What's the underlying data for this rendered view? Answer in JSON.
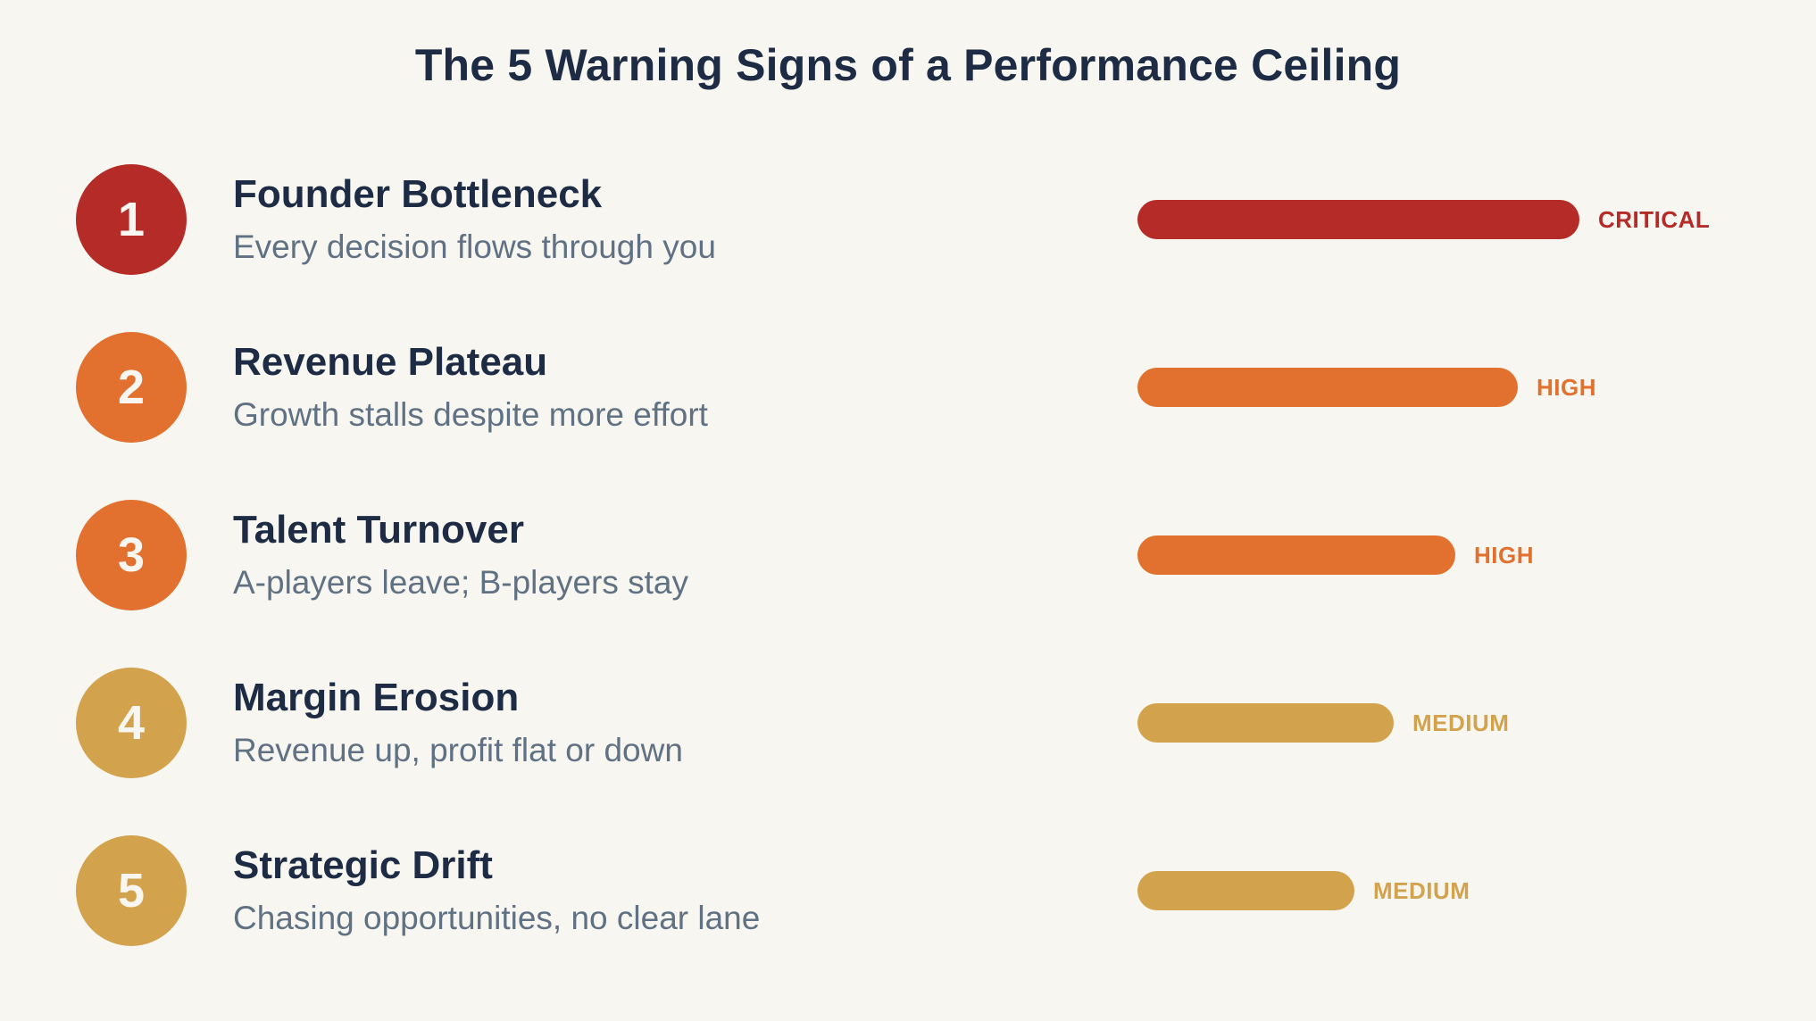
{
  "page": {
    "title": "The 5 Warning Signs of a Performance Ceiling",
    "background_color": "#F7F6F0",
    "title_color": "#1D2B44",
    "description_color": "#5F7183"
  },
  "severity_colors": {
    "CRITICAL": "#B42B27",
    "HIGH": "#E2712F",
    "MEDIUM": "#D3A24C"
  },
  "signs": [
    {
      "number": "1",
      "title": "Founder Bottleneck",
      "description": "Every decision flows through you",
      "severity": "CRITICAL",
      "color": "#B42B27",
      "bar_percent": 100
    },
    {
      "number": "2",
      "title": "Revenue Plateau",
      "description": "Growth stalls despite more effort",
      "severity": "HIGH",
      "color": "#E2712F",
      "bar_percent": 86
    },
    {
      "number": "3",
      "title": "Talent Turnover",
      "description": "A-players leave; B-players stay",
      "severity": "HIGH",
      "color": "#E2712F",
      "bar_percent": 72
    },
    {
      "number": "4",
      "title": "Margin Erosion",
      "description": "Revenue up, profit flat or down",
      "severity": "MEDIUM",
      "color": "#D3A24C",
      "bar_percent": 58
    },
    {
      "number": "5",
      "title": "Strategic Drift",
      "description": "Chasing opportunities, no clear lane",
      "severity": "MEDIUM",
      "color": "#D3A24C",
      "bar_percent": 49
    }
  ],
  "chart_data": {
    "type": "bar",
    "orientation": "horizontal",
    "title": "The 5 Warning Signs of a Performance Ceiling",
    "categories": [
      "Founder Bottleneck",
      "Revenue Plateau",
      "Talent Turnover",
      "Margin Erosion",
      "Strategic Drift"
    ],
    "values": [
      100,
      86,
      72,
      58,
      49
    ],
    "value_unit": "relative severity, % of longest bar",
    "data_labels": [
      "CRITICAL",
      "HIGH",
      "HIGH",
      "MEDIUM",
      "MEDIUM"
    ],
    "bar_colors": [
      "#B42B27",
      "#E2712F",
      "#E2712F",
      "#D3A24C",
      "#D3A24C"
    ],
    "annotations": [
      "Every decision flows through you",
      "Growth stalls despite more effort",
      "A-players leave; B-players stay",
      "Revenue up, profit flat or down",
      "Chasing opportunities, no clear lane"
    ],
    "legend": false,
    "grid": false,
    "axes_hidden": true
  }
}
